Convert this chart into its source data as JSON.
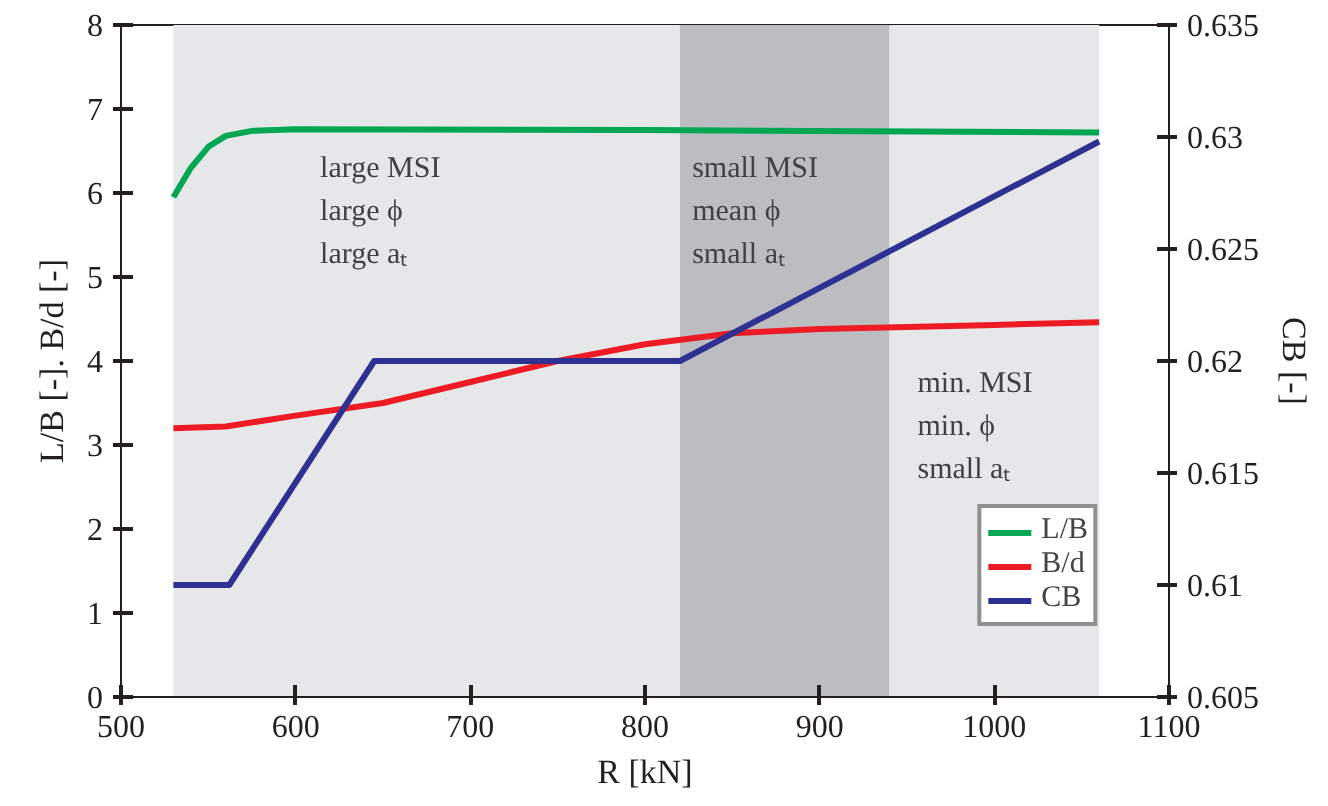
{
  "chart_data": {
    "type": "line",
    "xlabel": "R [kN]",
    "ylabel": "L/B [-]. B/d [-]",
    "y2label": "CB [-]",
    "xlim": [
      500,
      1100
    ],
    "xticks": [
      500,
      600,
      700,
      800,
      900,
      1000,
      1100
    ],
    "ylim": [
      0,
      8
    ],
    "yticks": [
      0,
      1,
      2,
      3,
      4,
      5,
      6,
      7,
      8
    ],
    "y2lim": [
      0.605,
      0.635
    ],
    "y2ticks": [
      {
        "value": 0.605,
        "label": "0.605"
      },
      {
        "value": 0.61,
        "label": "0.61"
      },
      {
        "value": 0.615,
        "label": "0.615"
      },
      {
        "value": 0.62,
        "label": "0.62"
      },
      {
        "value": 0.625,
        "label": "0.625"
      },
      {
        "value": 0.63,
        "label": "0.63"
      },
      {
        "value": 0.635,
        "label": "0.635"
      }
    ],
    "series": [
      {
        "name": "L/B",
        "color": "#00a651",
        "x": [
          530,
          540,
          550,
          560,
          575,
          600,
          800,
          1060
        ],
        "values": [
          5.95,
          6.3,
          6.55,
          6.68,
          6.74,
          6.76,
          6.75,
          6.72
        ]
      },
      {
        "name": "B/d",
        "color": "#ed1c24",
        "x": [
          530,
          560,
          600,
          650,
          700,
          750,
          800,
          850,
          900,
          1000,
          1060
        ],
        "values": [
          3.2,
          3.22,
          3.35,
          3.5,
          3.75,
          4.0,
          4.2,
          4.33,
          4.38,
          4.43,
          4.46
        ]
      },
      {
        "name": "CB",
        "color": "#2e3192",
        "axis": "y2",
        "x": [
          530,
          562,
          645,
          820,
          1060
        ],
        "values": [
          0.61,
          0.61,
          0.62,
          0.62,
          0.6298
        ]
      }
    ],
    "bands": [
      {
        "axis": "x",
        "from": 530,
        "to": 820,
        "color": "#e6e7e8"
      },
      {
        "axis": "x",
        "from": 820,
        "to": 940,
        "color": "#bcbdc1"
      },
      {
        "axis": "x",
        "from": 940,
        "to": 1060,
        "color": "#e6e7e8"
      }
    ],
    "annotations": [
      "large MSI\nlarge ϕ\nlarge aₜ",
      "small MSI\nmean ϕ\nsmall aₜ",
      "min. MSI\nmin. ϕ\nsmall aₜ"
    ],
    "legend": "bottom right",
    "grid": false,
    "marker": "none",
    "line_style": "solid"
  }
}
